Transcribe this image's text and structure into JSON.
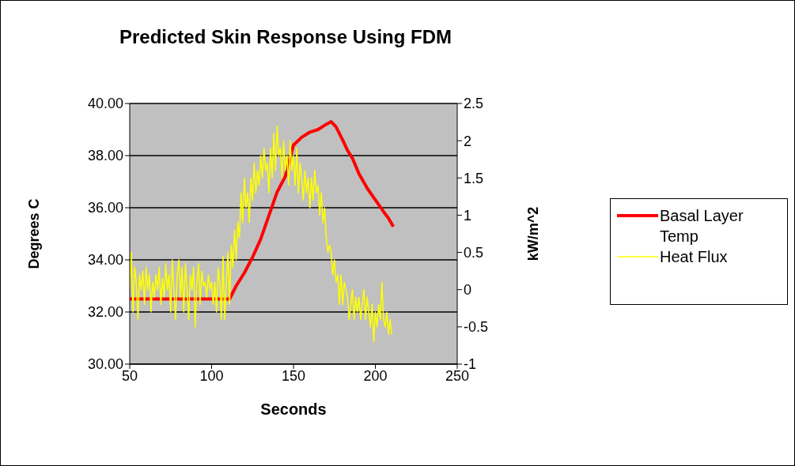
{
  "chart_data": {
    "type": "line",
    "title": "Predicted Skin Response Using FDM",
    "xlabel": "Seconds",
    "ylabel": "Degrees C",
    "y2label": "kW/m^2",
    "xlim": [
      50,
      250
    ],
    "xticks": [
      50,
      100,
      150,
      200,
      250
    ],
    "ylim": [
      30,
      40
    ],
    "yticks": [
      {
        "value": 30,
        "label": "30.00"
      },
      {
        "value": 32,
        "label": "32.00"
      },
      {
        "value": 34,
        "label": "34.00"
      },
      {
        "value": 36,
        "label": "36.00"
      },
      {
        "value": 38,
        "label": "38.00"
      },
      {
        "value": 40,
        "label": "40.00"
      }
    ],
    "y2lim": [
      -1,
      2.5
    ],
    "y2ticks": [
      -1,
      -0.5,
      0,
      0.5,
      1,
      1.5,
      2,
      2.5
    ],
    "grid": "y",
    "legend": "right",
    "marker": "none",
    "line_style": "solid",
    "series": [
      {
        "name": "Basal Layer Temp",
        "color": "#ff0000",
        "x": [
          50,
          60,
          70,
          80,
          90,
          100,
          111,
          115,
          120,
          125,
          130,
          135,
          140,
          145,
          150,
          155,
          160,
          165,
          170,
          173,
          176,
          180,
          183,
          186,
          190,
          195,
          200,
          205,
          208,
          211
        ],
        "values": [
          32.5,
          32.5,
          32.5,
          32.5,
          32.5,
          32.5,
          32.5,
          33.0,
          33.5,
          34.1,
          34.8,
          35.7,
          36.6,
          37.2,
          38.4,
          38.7,
          38.9,
          39.0,
          39.2,
          39.3,
          39.1,
          38.6,
          38.2,
          37.9,
          37.3,
          36.75,
          36.3,
          35.85,
          35.6,
          35.27
        ]
      },
      {
        "name": "Heat Flux",
        "color": "#ffff00",
        "axis": "y2",
        "x": [
          50,
          51,
          52,
          53,
          54,
          55,
          56,
          57,
          58,
          59,
          60,
          61,
          62,
          63,
          64,
          65,
          66,
          67,
          68,
          69,
          70,
          71,
          72,
          73,
          74,
          75,
          76,
          77,
          78,
          79,
          80,
          81,
          82,
          83,
          84,
          85,
          86,
          87,
          88,
          89,
          90,
          91,
          92,
          93,
          94,
          95,
          96,
          97,
          98,
          99,
          100,
          101,
          102,
          103,
          104,
          105,
          106,
          107,
          108,
          109,
          110,
          111,
          112,
          113,
          114,
          115,
          116,
          117,
          118,
          119,
          120,
          121,
          122,
          123,
          124,
          125,
          126,
          127,
          128,
          129,
          130,
          131,
          132,
          133,
          134,
          135,
          136,
          137,
          138,
          139,
          140,
          141,
          142,
          143,
          144,
          145,
          146,
          147,
          148,
          149,
          150,
          151,
          152,
          153,
          154,
          155,
          156,
          157,
          158,
          159,
          160,
          161,
          162,
          163,
          164,
          165,
          166,
          167,
          168,
          169,
          170,
          171,
          172,
          173,
          174,
          175,
          176,
          177,
          178,
          179,
          180,
          181,
          182,
          183,
          184,
          185,
          186,
          187,
          188,
          189,
          190,
          191,
          192,
          193,
          194,
          195,
          196,
          197,
          198,
          199,
          200,
          201,
          202,
          203,
          204,
          205,
          206,
          207,
          208,
          209,
          210
        ],
        "values": [
          0.0,
          0.5,
          -0.3,
          0.3,
          0.1,
          -0.4,
          0.2,
          0.0,
          0.25,
          -0.2,
          0.3,
          0.0,
          0.2,
          -0.3,
          0.1,
          -0.1,
          0.2,
          0.0,
          0.3,
          -0.2,
          0.15,
          -0.1,
          0.35,
          0.0,
          0.2,
          -0.3,
          0.4,
          0.0,
          -0.4,
          0.2,
          0.4,
          -0.1,
          0.3,
          -0.3,
          0.35,
          0.0,
          -0.4,
          0.2,
          0.0,
          0.3,
          -0.5,
          0.1,
          0.35,
          -0.2,
          0.25,
          0.05,
          0.1,
          -0.1,
          0.2,
          0.0,
          0.1,
          -0.2,
          0.1,
          -0.3,
          0.3,
          0.1,
          -0.4,
          0.45,
          -0.4,
          0.1,
          0.5,
          -0.2,
          0.6,
          0.3,
          0.8,
          0.4,
          0.9,
          0.7,
          1.3,
          0.9,
          1.5,
          1.1,
          1.3,
          0.9,
          1.5,
          1.2,
          1.7,
          1.3,
          1.6,
          1.4,
          1.8,
          1.5,
          1.9,
          1.6,
          1.7,
          1.3,
          1.9,
          1.5,
          2.1,
          1.6,
          2.2,
          1.8,
          1.9,
          1.5,
          2.0,
          1.6,
          1.8,
          1.4,
          2.0,
          1.6,
          1.8,
          1.4,
          1.9,
          1.3,
          1.7,
          1.5,
          1.2,
          1.6,
          1.3,
          1.5,
          1.1,
          1.5,
          1.2,
          1.6,
          1.3,
          1.4,
          1.0,
          1.3,
          0.9,
          1.1,
          0.7,
          0.5,
          0.6,
          0.5,
          0.2,
          0.4,
          0.1,
          0.2,
          -0.2,
          0.2,
          -0.2,
          0.1,
          0.0,
          -0.1,
          -0.4,
          -0.2,
          0.0,
          -0.4,
          -0.1,
          -0.3,
          -0.1,
          -0.4,
          -0.2,
          0.0,
          -0.4,
          -0.1,
          -0.3,
          -0.5,
          -0.2,
          -0.7,
          -0.3,
          -0.5,
          -0.2,
          -0.4,
          0.1,
          -0.4,
          -0.5,
          -0.3,
          -0.6,
          -0.4,
          -0.6
        ]
      }
    ]
  }
}
